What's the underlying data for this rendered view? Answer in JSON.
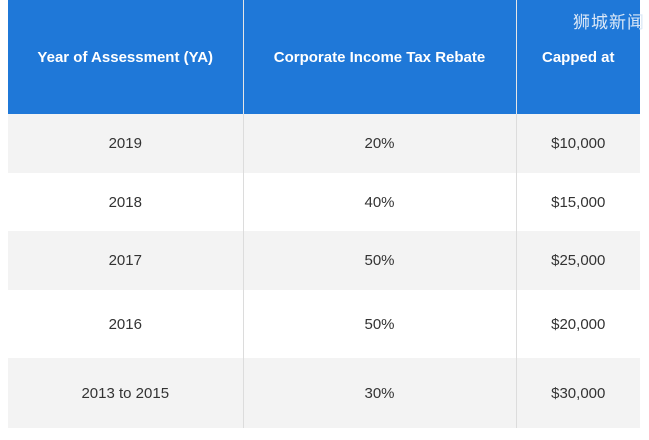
{
  "table": {
    "headers": [
      "Year of Assessment (YA)",
      "Corporate Income Tax Rebate",
      "Capped at"
    ],
    "rows": [
      [
        "2019",
        "20%",
        "$10,000"
      ],
      [
        "2018",
        "40%",
        "$15,000"
      ],
      [
        "2017",
        "50%",
        "$25,000"
      ],
      [
        "2016",
        "50%",
        "$20,000"
      ],
      [
        "2013 to 2015",
        "30%",
        "$30,000"
      ]
    ]
  },
  "watermark": "狮城新闻",
  "colors": {
    "header_bg": "#1f78d8",
    "header_text": "#ffffff",
    "row_alt_bg": "#f3f3f3",
    "row_bg": "#ffffff",
    "cell_text": "#333333"
  }
}
